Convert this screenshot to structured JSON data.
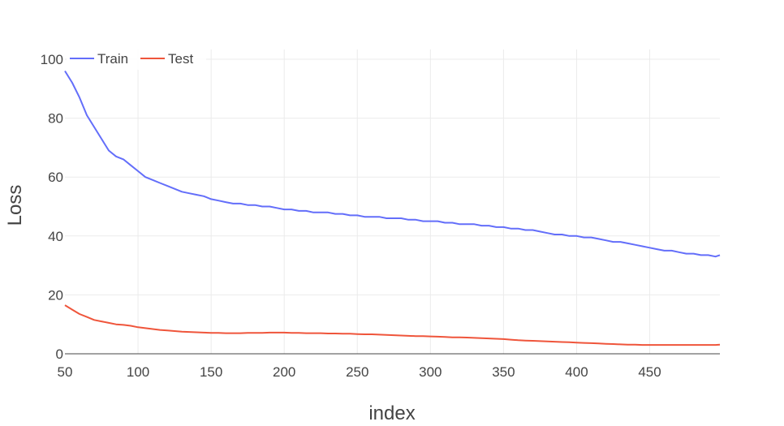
{
  "chart_data": {
    "type": "line",
    "xlabel": "index",
    "ylabel": "Loss",
    "xlim": [
      50,
      498
    ],
    "ylim": [
      0,
      100
    ],
    "xticks": [
      50,
      100,
      150,
      200,
      250,
      300,
      350,
      400,
      450
    ],
    "yticks": [
      0,
      20,
      40,
      60,
      80,
      100
    ],
    "grid": true,
    "legend": "top-left",
    "x": [
      50,
      55,
      60,
      65,
      70,
      75,
      80,
      85,
      90,
      95,
      100,
      105,
      110,
      115,
      120,
      125,
      130,
      135,
      140,
      145,
      150,
      155,
      160,
      165,
      170,
      175,
      180,
      185,
      190,
      195,
      200,
      205,
      210,
      215,
      220,
      225,
      230,
      235,
      240,
      245,
      250,
      255,
      260,
      265,
      270,
      275,
      280,
      285,
      290,
      295,
      300,
      305,
      310,
      315,
      320,
      325,
      330,
      335,
      340,
      345,
      350,
      355,
      360,
      365,
      370,
      375,
      380,
      385,
      390,
      395,
      400,
      405,
      410,
      415,
      420,
      425,
      430,
      435,
      440,
      445,
      450,
      455,
      460,
      465,
      470,
      475,
      480,
      485,
      490,
      495,
      498
    ],
    "series": [
      {
        "name": "Train",
        "color": "#636efa",
        "values": [
          96,
          92,
          87,
          81,
          77,
          73,
          69,
          67,
          66,
          64,
          62,
          60,
          59,
          58,
          57,
          56,
          55,
          54.5,
          54,
          53.5,
          52.5,
          52,
          51.5,
          51,
          51,
          50.5,
          50.5,
          50,
          50,
          49.5,
          49,
          49,
          48.5,
          48.5,
          48,
          48,
          48,
          47.5,
          47.5,
          47,
          47,
          46.5,
          46.5,
          46.5,
          46,
          46,
          46,
          45.5,
          45.5,
          45,
          45,
          45,
          44.5,
          44.5,
          44,
          44,
          44,
          43.5,
          43.5,
          43,
          43,
          42.5,
          42.5,
          42,
          42,
          41.5,
          41,
          40.5,
          40.5,
          40,
          40,
          39.5,
          39.5,
          39,
          38.5,
          38,
          38,
          37.5,
          37,
          36.5,
          36,
          35.5,
          35,
          35,
          34.5,
          34,
          34,
          33.5,
          33.5,
          33,
          33.5
        ]
      },
      {
        "name": "Test",
        "color": "#ef553b",
        "values": [
          16.5,
          15,
          13.5,
          12.5,
          11.5,
          11,
          10.5,
          10,
          9.8,
          9.5,
          9,
          8.7,
          8.4,
          8.1,
          7.9,
          7.7,
          7.5,
          7.4,
          7.3,
          7.2,
          7.1,
          7.1,
          7,
          7,
          7,
          7.1,
          7.1,
          7.1,
          7.2,
          7.2,
          7.2,
          7.1,
          7.1,
          7,
          7,
          7,
          6.9,
          6.9,
          6.8,
          6.8,
          6.7,
          6.6,
          6.6,
          6.5,
          6.4,
          6.3,
          6.2,
          6.1,
          6,
          6,
          5.9,
          5.8,
          5.7,
          5.6,
          5.6,
          5.5,
          5.4,
          5.3,
          5.2,
          5.1,
          5,
          4.8,
          4.6,
          4.5,
          4.4,
          4.3,
          4.2,
          4.1,
          4,
          3.9,
          3.8,
          3.7,
          3.6,
          3.5,
          3.4,
          3.3,
          3.2,
          3.1,
          3.1,
          3,
          3,
          3,
          3,
          3,
          3,
          3,
          3,
          3,
          3,
          3,
          3.1
        ]
      }
    ]
  }
}
